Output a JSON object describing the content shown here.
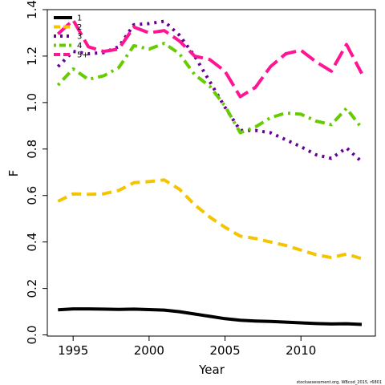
{
  "chart_data": {
    "type": "line",
    "xlabel": "Year",
    "ylabel": "F",
    "xlim": [
      1993.3,
      2014.9
    ],
    "ylim": [
      -0.005,
      1.4
    ],
    "x_ticks": [
      1995,
      2000,
      2005,
      2010
    ],
    "y_ticks": [
      0.0,
      0.2,
      0.4,
      0.6,
      0.8,
      1.0,
      1.2,
      1.4
    ],
    "y_tick_labels": [
      "0.0",
      "0.2",
      "0.4",
      "0.6",
      "0.8",
      "1.0",
      "1.2",
      "1.4"
    ],
    "legend_position": "top-left",
    "footnote": "stockassessment.org, WBcod_2015, r6801",
    "x": [
      1994,
      1995,
      1996,
      1997,
      1998,
      1999,
      2000,
      2001,
      2002,
      2003,
      2004,
      2005,
      2006,
      2007,
      2008,
      2009,
      2010,
      2011,
      2012,
      2013,
      2014
    ],
    "series": [
      {
        "name": "1",
        "color": "#000000",
        "dash": "solid",
        "values": [
          0.108,
          0.112,
          0.112,
          0.111,
          0.11,
          0.111,
          0.109,
          0.107,
          0.1,
          0.09,
          0.08,
          0.07,
          0.063,
          0.06,
          0.058,
          0.055,
          0.052,
          0.049,
          0.047,
          0.048,
          0.045
        ]
      },
      {
        "name": "2",
        "color": "#f5c400",
        "dash": "dashed",
        "values": [
          0.575,
          0.607,
          0.605,
          0.607,
          0.622,
          0.655,
          0.66,
          0.667,
          0.627,
          0.56,
          0.507,
          0.463,
          0.425,
          0.415,
          0.4,
          0.385,
          0.365,
          0.345,
          0.333,
          0.348,
          0.328
        ]
      },
      {
        "name": "3",
        "color": "#660099",
        "dash": "dotted",
        "values": [
          1.155,
          1.22,
          1.21,
          1.215,
          1.24,
          1.335,
          1.34,
          1.35,
          1.29,
          1.2,
          1.09,
          0.98,
          0.88,
          0.88,
          0.87,
          0.84,
          0.81,
          0.775,
          0.76,
          0.805,
          0.745
        ]
      },
      {
        "name": "4",
        "color": "#66cc00",
        "dash": "dotdash",
        "values": [
          1.075,
          1.145,
          1.1,
          1.115,
          1.15,
          1.245,
          1.23,
          1.255,
          1.21,
          1.12,
          1.07,
          0.985,
          0.87,
          0.895,
          0.935,
          0.955,
          0.95,
          0.92,
          0.905,
          0.975,
          0.89
        ]
      },
      {
        "name": "5+",
        "color": "#ff1493",
        "dash": "longdash",
        "values": [
          1.295,
          1.355,
          1.24,
          1.22,
          1.23,
          1.325,
          1.3,
          1.31,
          1.265,
          1.2,
          1.185,
          1.135,
          1.025,
          1.065,
          1.155,
          1.21,
          1.225,
          1.175,
          1.135,
          1.25,
          1.125
        ]
      }
    ]
  }
}
